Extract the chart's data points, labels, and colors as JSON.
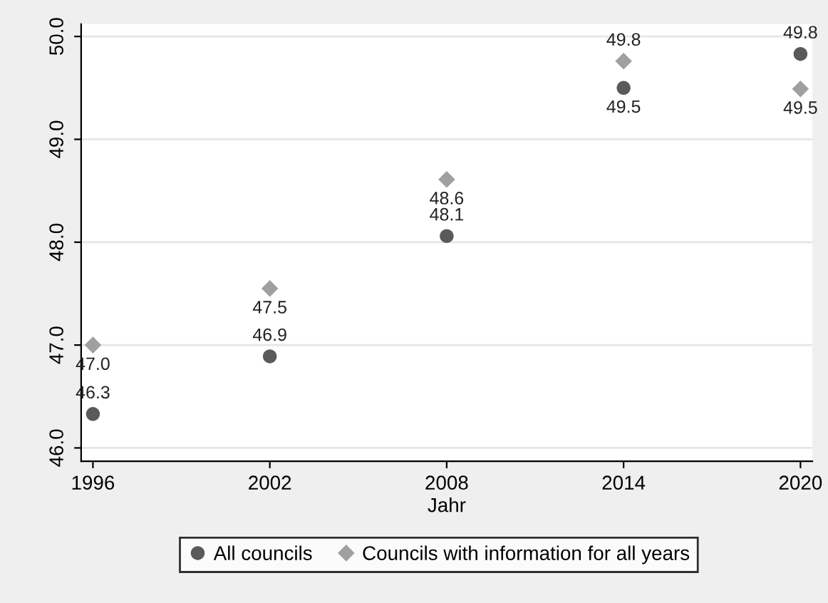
{
  "chart_data": {
    "type": "scatter",
    "xlabel": "Jahr",
    "x": [
      1996,
      2002,
      2008,
      2014,
      2020
    ],
    "xlim": [
      1995.6,
      2020.4
    ],
    "xticks": [
      1996,
      2002,
      2008,
      2014,
      2020
    ],
    "ylim": [
      45.87,
      50.12
    ],
    "yticks": [
      {
        "value": 46,
        "label": "46.0"
      },
      {
        "value": 47,
        "label": "47.0"
      },
      {
        "value": 48,
        "label": "48.0"
      },
      {
        "value": 49,
        "label": "49.0"
      },
      {
        "value": 50,
        "label": "50.0"
      }
    ],
    "grid": "y",
    "legend": "bottom",
    "series": [
      {
        "name": "All councils",
        "color": "#5a5a5a",
        "marker": "circle",
        "values": [
          46.33,
          46.89,
          48.06,
          49.5,
          49.83
        ],
        "value_labels": [
          "46.3",
          "46.9",
          "48.1",
          "49.5",
          "49.8"
        ]
      },
      {
        "name": "Councils with information for all years",
        "color": "#a0a0a0",
        "marker": "diamond",
        "values": [
          47.0,
          47.55,
          48.61,
          49.76,
          49.49
        ],
        "value_labels": [
          "47.0",
          "47.5",
          "48.6",
          "49.8",
          "49.5"
        ]
      }
    ]
  }
}
